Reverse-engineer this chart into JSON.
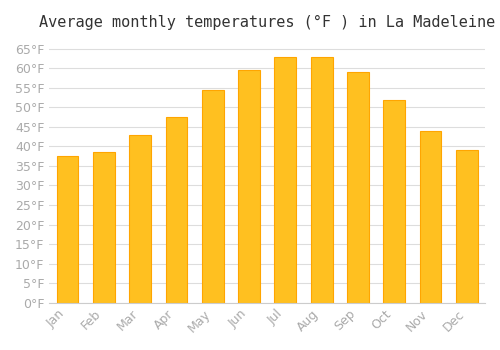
{
  "title": "Average monthly temperatures (°F ) in La Madeleine",
  "months": [
    "Jan",
    "Feb",
    "Mar",
    "Apr",
    "May",
    "Jun",
    "Jul",
    "Aug",
    "Sep",
    "Oct",
    "Nov",
    "Dec"
  ],
  "values": [
    37.5,
    38.5,
    43.0,
    47.5,
    54.5,
    59.5,
    63.0,
    63.0,
    59.0,
    52.0,
    44.0,
    39.0
  ],
  "bar_color_face": "#FFC020",
  "bar_color_edge": "#FFA500",
  "background_color": "#FFFFFF",
  "grid_color": "#DDDDDD",
  "ylim": [
    0,
    67
  ],
  "yticks": [
    0,
    5,
    10,
    15,
    20,
    25,
    30,
    35,
    40,
    45,
    50,
    55,
    60,
    65
  ],
  "title_fontsize": 11,
  "tick_label_fontsize": 9,
  "tick_label_color": "#AAAAAA"
}
